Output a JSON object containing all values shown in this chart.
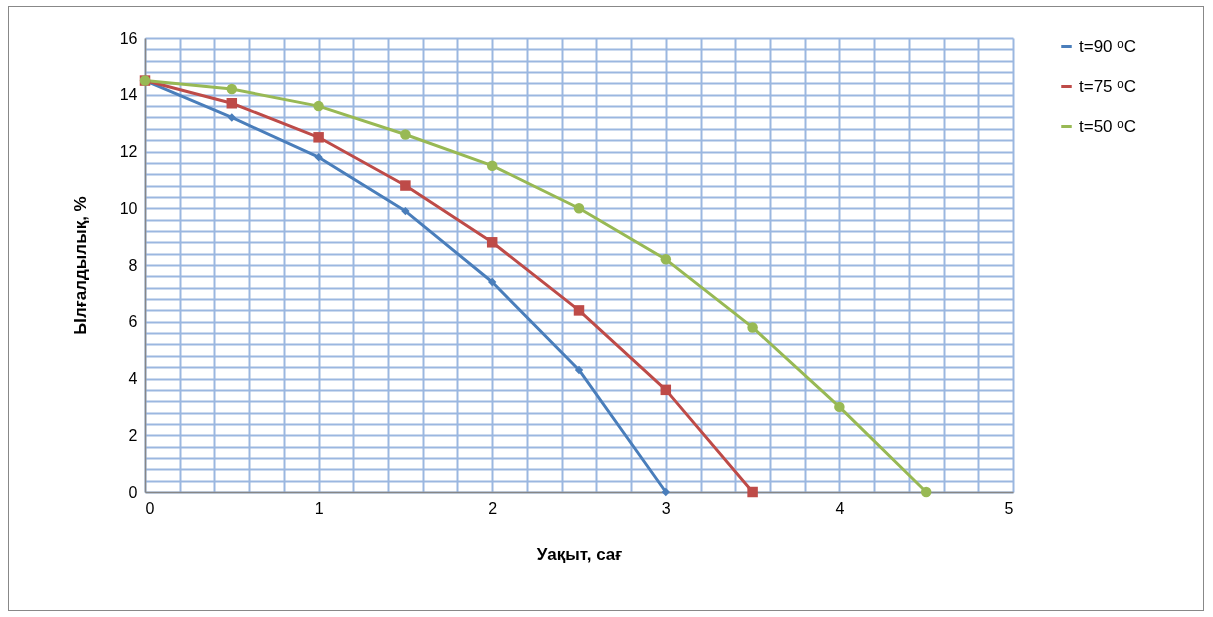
{
  "chart_data": {
    "type": "line",
    "xlabel": "Уақыт, сағ",
    "ylabel": "Ылғалдылық, %",
    "xlim": [
      0,
      5
    ],
    "ylim": [
      0,
      16
    ],
    "xticks": [
      0,
      {
        "value": 0.2,
        "label": null
      },
      {
        "value": 0.4,
        "label": null
      },
      {
        "value": 0.6,
        "label": null
      },
      {
        "value": 0.8,
        "label": null
      },
      1,
      {
        "value": 1.2,
        "label": null
      },
      {
        "value": 1.4,
        "label": null
      },
      {
        "value": 1.6,
        "label": null
      },
      {
        "value": 1.8,
        "label": null
      },
      2,
      {
        "value": 2.2,
        "label": null
      },
      {
        "value": 2.4,
        "label": null
      },
      {
        "value": 2.6,
        "label": null
      },
      {
        "value": 2.8,
        "label": null
      },
      3,
      {
        "value": 3.2,
        "label": null
      },
      {
        "value": 3.4,
        "label": null
      },
      {
        "value": 3.6,
        "label": null
      },
      {
        "value": 3.8,
        "label": null
      },
      4,
      {
        "value": 4.2,
        "label": null
      },
      {
        "value": 4.4,
        "label": null
      },
      {
        "value": 4.6,
        "label": null
      },
      {
        "value": 4.8,
        "label": null
      },
      5
    ],
    "yticks": [
      0,
      {
        "value": 0.4,
        "label": null
      },
      {
        "value": 0.8,
        "label": null
      },
      {
        "value": 1.2,
        "label": null
      },
      {
        "value": 1.6,
        "label": null
      },
      2,
      {
        "value": 2.4,
        "label": null
      },
      {
        "value": 2.8,
        "label": null
      },
      {
        "value": 3.2,
        "label": null
      },
      {
        "value": 3.6,
        "label": null
      },
      4,
      {
        "value": 4.4,
        "label": null
      },
      {
        "value": 4.8,
        "label": null
      },
      {
        "value": 5.2,
        "label": null
      },
      {
        "value": 5.6,
        "label": null
      },
      6,
      {
        "value": 6.4,
        "label": null
      },
      {
        "value": 6.8,
        "label": null
      },
      {
        "value": 7.2,
        "label": null
      },
      {
        "value": 7.6,
        "label": null
      },
      8,
      {
        "value": 8.4,
        "label": null
      },
      {
        "value": 8.8,
        "label": null
      },
      {
        "value": 9.2,
        "label": null
      },
      {
        "value": 9.6,
        "label": null
      },
      10,
      {
        "value": 10.4,
        "label": null
      },
      {
        "value": 10.8,
        "label": null
      },
      {
        "value": 11.2,
        "label": null
      },
      {
        "value": 11.6,
        "label": null
      },
      12,
      {
        "value": 12.4,
        "label": null
      },
      {
        "value": 12.8,
        "label": null
      },
      {
        "value": 13.2,
        "label": null
      },
      {
        "value": 13.6,
        "label": null
      },
      14,
      {
        "value": 14.4,
        "label": null
      },
      {
        "value": 14.8,
        "label": null
      },
      {
        "value": 15.2,
        "label": null
      },
      {
        "value": 15.6,
        "label": null
      },
      16
    ],
    "grid": true,
    "legend": "right",
    "line_style": "solid",
    "series": [
      {
        "name": "t=90 ᵒC",
        "color": "#4a7ebb",
        "marker": "diamond",
        "x": [
          0,
          0.5,
          1,
          1.5,
          2,
          2.5,
          3
        ],
        "values": [
          14.5,
          13.2,
          11.8,
          9.9,
          7.4,
          4.3,
          0
        ]
      },
      {
        "name": "t=75 ᵒC",
        "color": "#be4b48",
        "marker": "square",
        "x": [
          0,
          0.5,
          1,
          1.5,
          2,
          2.5,
          3,
          3.5
        ],
        "values": [
          14.5,
          13.7,
          12.5,
          10.8,
          8.8,
          6.4,
          3.6,
          0
        ]
      },
      {
        "name": "t=50 ᵒC",
        "color": "#98b954",
        "marker": "circle",
        "x": [
          0,
          0.5,
          1,
          1.5,
          2,
          2.5,
          3,
          3.5,
          4,
          4.5
        ],
        "values": [
          14.5,
          14.2,
          13.6,
          12.6,
          11.5,
          10.0,
          8.2,
          5.8,
          3.0,
          0
        ]
      }
    ]
  }
}
